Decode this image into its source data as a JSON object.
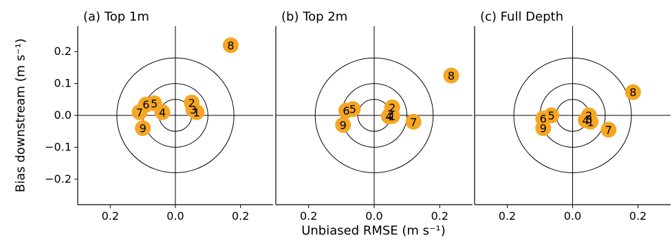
{
  "figure": {
    "ylabel": "Bias downstream (m s⁻¹)",
    "xlabel": "Unbiased RMSE (m s⁻¹)"
  },
  "colors": {
    "marker": "#f5a623",
    "axis": "#000000",
    "circle": "#000000"
  },
  "chart_data": [
    {
      "type": "scatter",
      "title": "(a) Top 1m",
      "xlim": [
        -0.3,
        0.3
      ],
      "ylim": [
        -0.28,
        0.28
      ],
      "xticks": [
        -0.2,
        0.0,
        0.2
      ],
      "xticklabels": [
        "0.2",
        "0.0",
        "0.2"
      ],
      "yticks": [
        -0.2,
        -0.1,
        0.0,
        0.1,
        0.2
      ],
      "yticklabels": [
        "−0.2",
        "−0.1",
        "0.0",
        "0.1",
        "0.2"
      ],
      "circles": [
        0.05,
        0.1,
        0.18
      ],
      "points": [
        {
          "label": "1",
          "x": 0.065,
          "y": 0.01
        },
        {
          "label": "2",
          "x": 0.05,
          "y": 0.04
        },
        {
          "label": "3",
          "x": 0.055,
          "y": 0.018
        },
        {
          "label": "4",
          "x": -0.04,
          "y": 0.01
        },
        {
          "label": "5",
          "x": -0.065,
          "y": 0.038
        },
        {
          "label": "6",
          "x": -0.09,
          "y": 0.034
        },
        {
          "label": "7",
          "x": -0.11,
          "y": 0.01
        },
        {
          "label": "8",
          "x": 0.17,
          "y": 0.22
        },
        {
          "label": "9",
          "x": -0.1,
          "y": -0.04
        }
      ]
    },
    {
      "type": "scatter",
      "title": "(b) Top 2m",
      "xlim": [
        -0.3,
        0.3
      ],
      "ylim": [
        -0.28,
        0.28
      ],
      "xticks": [
        -0.2,
        0.0,
        0.2
      ],
      "xticklabels": [
        "0.2",
        "0.0",
        "0.2"
      ],
      "circles": [
        0.05,
        0.1,
        0.18
      ],
      "points": [
        {
          "label": "1",
          "x": 0.055,
          "y": -0.002
        },
        {
          "label": "2",
          "x": 0.055,
          "y": 0.025
        },
        {
          "label": "3",
          "x": 0.05,
          "y": 0.004
        },
        {
          "label": "4",
          "x": 0.045,
          "y": -0.003
        },
        {
          "label": "5",
          "x": -0.065,
          "y": 0.02
        },
        {
          "label": "6",
          "x": -0.085,
          "y": 0.015
        },
        {
          "label": "7",
          "x": 0.12,
          "y": -0.02
        },
        {
          "label": "8",
          "x": 0.235,
          "y": 0.125
        },
        {
          "label": "9",
          "x": -0.095,
          "y": -0.03
        }
      ]
    },
    {
      "type": "scatter",
      "title": "(c) Full Depth",
      "xlim": [
        -0.3,
        0.3
      ],
      "ylim": [
        -0.28,
        0.28
      ],
      "xticks": [
        -0.2,
        0.0,
        0.2
      ],
      "xticklabels": [
        "0.2",
        "0.0",
        "0.2"
      ],
      "circles": [
        0.05,
        0.1,
        0.18
      ],
      "points": [
        {
          "label": "1",
          "x": 0.055,
          "y": -0.02
        },
        {
          "label": "2",
          "x": 0.05,
          "y": 0.0
        },
        {
          "label": "3",
          "x": 0.05,
          "y": -0.012
        },
        {
          "label": "4",
          "x": 0.04,
          "y": -0.015
        },
        {
          "label": "5",
          "x": -0.065,
          "y": 0.0
        },
        {
          "label": "6",
          "x": -0.09,
          "y": -0.01
        },
        {
          "label": "7",
          "x": 0.11,
          "y": -0.045
        },
        {
          "label": "8",
          "x": 0.185,
          "y": 0.073
        },
        {
          "label": "9",
          "x": -0.09,
          "y": -0.04
        }
      ]
    }
  ]
}
